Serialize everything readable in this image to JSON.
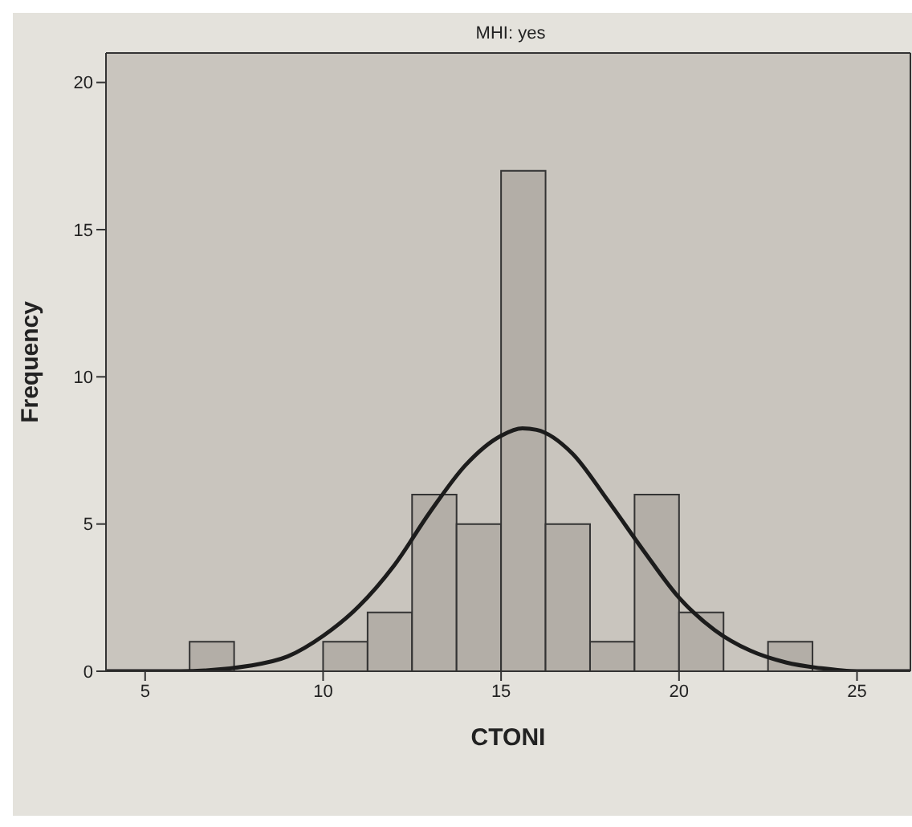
{
  "chart_data": {
    "type": "histogram",
    "title": "MHI: yes",
    "xlabel": "CTONI",
    "ylabel": "Frequency",
    "bins": [
      6.25,
      7.5,
      8.75,
      10,
      11.25,
      12.5,
      13.75,
      15,
      16.25,
      17.5,
      18.75,
      20,
      21.25,
      22.5,
      23.75
    ],
    "values": [
      1,
      0,
      0,
      1,
      2,
      6,
      5,
      17,
      5,
      1,
      6,
      2,
      0,
      1
    ],
    "color": "#b3aea7",
    "series": [
      {
        "type": "line",
        "color": "#1c1c1c",
        "x": [
          3.9,
          6,
          8,
          9,
          10,
          11,
          12,
          13,
          14,
          15,
          15.6,
          16,
          17,
          18,
          19,
          20,
          21,
          22,
          23,
          24,
          25,
          26.5
        ],
        "values": [
          0,
          0,
          0.2,
          0.5,
          1.2,
          2.2,
          3.6,
          5.4,
          7,
          8,
          8.25,
          8.2,
          7.4,
          5.8,
          4.1,
          2.5,
          1.4,
          0.7,
          0.3,
          0.1,
          0,
          0
        ]
      }
    ],
    "xlim": [
      3.9,
      26.5
    ],
    "xticks": [
      5,
      10,
      15,
      20,
      25
    ],
    "ylim": [
      0,
      21
    ],
    "yticks": [
      0,
      5,
      10,
      15,
      20
    ],
    "grid": false
  }
}
